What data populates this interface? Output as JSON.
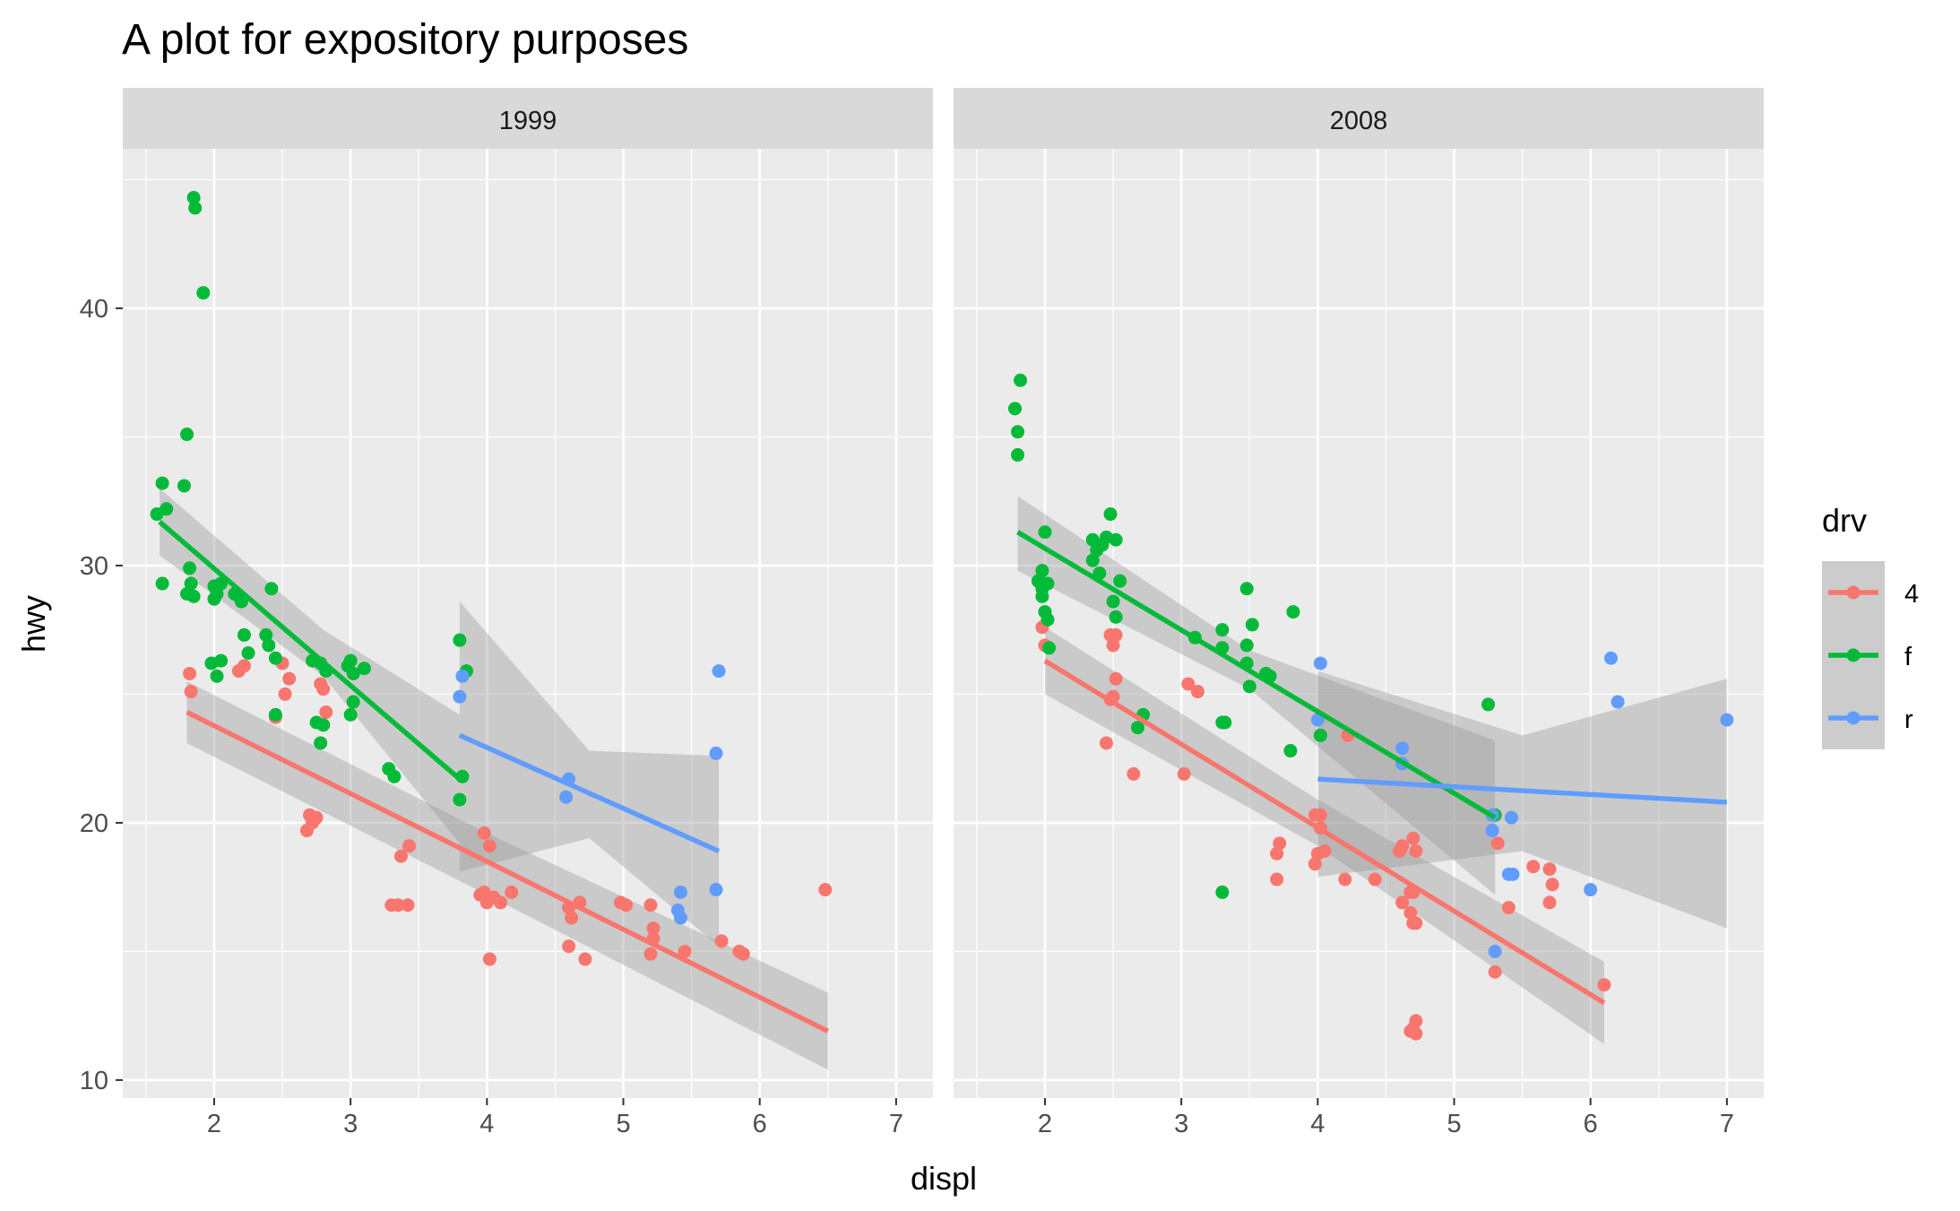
{
  "chart_data": {
    "type": "scatter",
    "title": "A plot for expository purposes",
    "xlabel": "displ",
    "ylabel": "hwy",
    "xlim": [
      1.33,
      7.27
    ],
    "ylim": [
      9.3,
      46.2
    ],
    "x_ticks": [
      2,
      3,
      4,
      5,
      6,
      7
    ],
    "y_ticks": [
      10,
      20,
      30,
      40
    ],
    "grid": true,
    "facet_variable": "year",
    "legend": {
      "title": "drv",
      "position": "right",
      "entries": [
        {
          "label": "4",
          "color": "#F8766D"
        },
        {
          "label": "f",
          "color": "#00BA38"
        },
        {
          "label": "r",
          "color": "#619CFF"
        }
      ]
    },
    "panels": [
      {
        "label": "1999",
        "points": {
          "4": [
            [
              1.82,
              25.8
            ],
            [
              1.83,
              25.1
            ],
            [
              2.18,
              25.9
            ],
            [
              2.22,
              26.1
            ],
            [
              2.5,
              26.2
            ],
            [
              2.52,
              25
            ],
            [
              2.55,
              25.6
            ],
            [
              2.45,
              24.1
            ],
            [
              2.7,
              20.3
            ],
            [
              2.68,
              19.7
            ],
            [
              2.72,
              20
            ],
            [
              2.75,
              20.2
            ],
            [
              2.78,
              25.4
            ],
            [
              2.82,
              24.3
            ],
            [
              2.8,
              25.2
            ],
            [
              3.3,
              16.8
            ],
            [
              3.35,
              16.8
            ],
            [
              3.42,
              16.8
            ],
            [
              3.37,
              18.7
            ],
            [
              3.43,
              19.1
            ],
            [
              3.98,
              19.6
            ],
            [
              4.02,
              19.1
            ],
            [
              3.95,
              17.2
            ],
            [
              4.0,
              16.9
            ],
            [
              4.05,
              17.1
            ],
            [
              4.1,
              16.9
            ],
            [
              3.98,
              17.3
            ],
            [
              4.18,
              17.3
            ],
            [
              4.02,
              14.7
            ],
            [
              4.6,
              16.7
            ],
            [
              4.6,
              15.2
            ],
            [
              4.62,
              16.3
            ],
            [
              4.68,
              16.9
            ],
            [
              4.72,
              14.7
            ],
            [
              4.98,
              16.9
            ],
            [
              5.02,
              16.8
            ],
            [
              5.2,
              16.8
            ],
            [
              5.22,
              15.9
            ],
            [
              5.2,
              14.9
            ],
            [
              5.22,
              15.5
            ],
            [
              5.45,
              15
            ],
            [
              5.72,
              15.4
            ],
            [
              5.85,
              15
            ],
            [
              5.88,
              14.9
            ],
            [
              6.48,
              17.4
            ]
          ],
          "f": [
            [
              1.58,
              32
            ],
            [
              1.62,
              33.2
            ],
            [
              1.65,
              32.2
            ],
            [
              1.78,
              33.1
            ],
            [
              1.8,
              35.1
            ],
            [
              1.85,
              44.3
            ],
            [
              1.86,
              43.9
            ],
            [
              1.92,
              40.6
            ],
            [
              1.62,
              29.3
            ],
            [
              1.8,
              28.9
            ],
            [
              1.83,
              29.3
            ],
            [
              1.85,
              28.8
            ],
            [
              1.82,
              29.9
            ],
            [
              2.0,
              29.2
            ],
            [
              2.02,
              28.9
            ],
            [
              2.05,
              29.3
            ],
            [
              2.0,
              28.7
            ],
            [
              2.18,
              28.8
            ],
            [
              2.2,
              28.6
            ],
            [
              2.15,
              28.9
            ],
            [
              1.98,
              26.2
            ],
            [
              2.05,
              26.3
            ],
            [
              2.02,
              25.7
            ],
            [
              2.22,
              27.3
            ],
            [
              2.25,
              26.6
            ],
            [
              2.38,
              27.3
            ],
            [
              2.4,
              26.9
            ],
            [
              2.42,
              29.1
            ],
            [
              2.45,
              26.4
            ],
            [
              2.45,
              24.2
            ],
            [
              2.72,
              26.3
            ],
            [
              2.78,
              26.2
            ],
            [
              2.82,
              25.9
            ],
            [
              2.75,
              23.9
            ],
            [
              2.8,
              23.8
            ],
            [
              2.78,
              23.1
            ],
            [
              2.98,
              26.1
            ],
            [
              3.0,
              26.3
            ],
            [
              3.02,
              25.8
            ],
            [
              3.1,
              26
            ],
            [
              3.02,
              24.7
            ],
            [
              3.0,
              24.2
            ],
            [
              3.28,
              22.1
            ],
            [
              3.32,
              21.8
            ],
            [
              3.8,
              27.1
            ],
            [
              3.85,
              25.9
            ],
            [
              3.82,
              21.8
            ],
            [
              3.8,
              20.9
            ]
          ],
          "r": [
            [
              3.8,
              24.9
            ],
            [
              3.82,
              25.7
            ],
            [
              4.6,
              21.7
            ],
            [
              4.58,
              21
            ],
            [
              5.42,
              17.3
            ],
            [
              5.4,
              16.6
            ],
            [
              5.42,
              16.3
            ],
            [
              5.68,
              22.7
            ],
            [
              5.7,
              25.9
            ],
            [
              5.68,
              17.4
            ]
          ]
        },
        "trend": {
          "4": {
            "x": [
              1.8,
              6.5
            ],
            "y": [
              24.3,
              11.9
            ],
            "band": [
              [
                1.8,
                23.1,
                25.5
              ],
              [
                4.0,
                17.2,
                19.6
              ],
              [
                6.5,
                10.4,
                13.4
              ]
            ]
          },
          "f": {
            "x": [
              1.6,
              3.8
            ],
            "y": [
              31.7,
              21.7
            ],
            "band": [
              [
                1.6,
                30.4,
                33.0
              ],
              [
                2.8,
                25.7,
                27.5
              ],
              [
                3.8,
                19.2,
                24.2
              ]
            ]
          },
          "r": {
            "x": [
              3.8,
              5.7
            ],
            "y": [
              23.4,
              18.9
            ],
            "band": [
              [
                3.8,
                18.1,
                28.6
              ],
              [
                4.75,
                19.4,
                22.8
              ],
              [
                5.7,
                15.2,
                22.6
              ]
            ]
          }
        }
      },
      {
        "label": "2008",
        "points": {
          "4": [
            [
              1.98,
              27.6
            ],
            [
              2.0,
              26.9
            ],
            [
              2.48,
              27.3
            ],
            [
              2.52,
              27.3
            ],
            [
              2.5,
              26.9
            ],
            [
              2.52,
              25.6
            ],
            [
              2.48,
              24.8
            ],
            [
              2.5,
              24.9
            ],
            [
              2.45,
              23.1
            ],
            [
              2.65,
              21.9
            ],
            [
              3.02,
              21.9
            ],
            [
              3.05,
              25.4
            ],
            [
              3.12,
              25.1
            ],
            [
              3.72,
              19.2
            ],
            [
              3.7,
              18.8
            ],
            [
              3.7,
              17.8
            ],
            [
              3.98,
              18.4
            ],
            [
              3.98,
              20.3
            ],
            [
              4.02,
              19.8
            ],
            [
              4.0,
              18.8
            ],
            [
              4.05,
              18.9
            ],
            [
              4.02,
              20.3
            ],
            [
              4.2,
              17.8
            ],
            [
              4.22,
              23.4
            ],
            [
              4.42,
              17.8
            ],
            [
              4.62,
              19.1
            ],
            [
              4.6,
              18.9
            ],
            [
              4.62,
              16.9
            ],
            [
              4.68,
              11.9
            ],
            [
              4.7,
              12
            ],
            [
              4.72,
              12.3
            ],
            [
              4.72,
              11.8
            ],
            [
              4.68,
              16.5
            ],
            [
              4.7,
              16.1
            ],
            [
              4.68,
              17.3
            ],
            [
              4.7,
              19.4
            ],
            [
              4.72,
              18.9
            ],
            [
              4.7,
              17.3
            ],
            [
              4.72,
              16.1
            ],
            [
              5.32,
              19.2
            ],
            [
              5.3,
              14.2
            ],
            [
              5.4,
              16.7
            ],
            [
              5.58,
              18.3
            ],
            [
              5.7,
              18.2
            ],
            [
              5.72,
              17.6
            ],
            [
              5.7,
              16.9
            ],
            [
              6.1,
              13.7
            ]
          ],
          "f": [
            [
              1.78,
              36.1
            ],
            [
              1.8,
              35.2
            ],
            [
              1.82,
              37.2
            ],
            [
              1.8,
              34.3
            ],
            [
              1.98,
              29.8
            ],
            [
              1.95,
              29.4
            ],
            [
              1.98,
              29.1
            ],
            [
              1.98,
              28.8
            ],
            [
              1.96,
              29.4
            ],
            [
              2.0,
              28.2
            ],
            [
              2.02,
              27.9
            ],
            [
              2.03,
              26.8
            ],
            [
              2.0,
              31.3
            ],
            [
              2.02,
              29.3
            ],
            [
              2.35,
              31
            ],
            [
              2.38,
              30.6
            ],
            [
              2.42,
              30.8
            ],
            [
              2.48,
              32
            ],
            [
              2.45,
              31.1
            ],
            [
              2.52,
              31
            ],
            [
              2.35,
              30.2
            ],
            [
              2.4,
              29.7
            ],
            [
              2.55,
              29.4
            ],
            [
              2.5,
              28.6
            ],
            [
              2.52,
              28
            ],
            [
              2.68,
              23.7
            ],
            [
              2.72,
              24.2
            ],
            [
              3.1,
              27.2
            ],
            [
              3.3,
              27.5
            ],
            [
              3.3,
              26.8
            ],
            [
              3.48,
              26.9
            ],
            [
              3.5,
              25.3
            ],
            [
              3.48,
              26.2
            ],
            [
              3.52,
              27.7
            ],
            [
              3.48,
              29.1
            ],
            [
              3.62,
              25.8
            ],
            [
              3.65,
              25.7
            ],
            [
              3.3,
              23.9
            ],
            [
              3.32,
              23.9
            ],
            [
              3.3,
              17.3
            ],
            [
              3.82,
              28.2
            ],
            [
              3.8,
              22.8
            ],
            [
              4.02,
              23.4
            ],
            [
              5.25,
              24.6
            ],
            [
              5.3,
              20.3
            ]
          ],
          "r": [
            [
              4.0,
              24
            ],
            [
              4.02,
              26.2
            ],
            [
              4.62,
              22.3
            ],
            [
              4.62,
              22.9
            ],
            [
              5.28,
              20.3
            ],
            [
              5.28,
              19.7
            ],
            [
              5.42,
              20.2
            ],
            [
              5.4,
              18
            ],
            [
              5.43,
              18
            ],
            [
              5.3,
              15
            ],
            [
              6.0,
              17.4
            ],
            [
              6.15,
              26.4
            ],
            [
              6.2,
              24.7
            ],
            [
              7.0,
              24
            ]
          ]
        },
        "trend": {
          "4": {
            "x": [
              2.0,
              6.1
            ],
            "y": [
              26.3,
              13
            ],
            "band": [
              [
                2.0,
                25.0,
                27.6
              ],
              [
                4.0,
                19.1,
                20.9
              ],
              [
                6.1,
                11.4,
                14.6
              ]
            ]
          },
          "f": {
            "x": [
              1.8,
              5.3
            ],
            "y": [
              31.3,
              20.2
            ],
            "band": [
              [
                1.8,
                29.8,
                32.7
              ],
              [
                3.5,
                25.2,
                26.7
              ],
              [
                5.3,
                17.2,
                23.2
              ]
            ]
          },
          "r": {
            "x": [
              4.0,
              7.0
            ],
            "y": [
              21.7,
              20.8
            ],
            "band": [
              [
                4.0,
                17.9,
                25.9
              ],
              [
                5.5,
                18.9,
                23.4
              ],
              [
                7.0,
                15.9,
                25.6
              ]
            ]
          }
        }
      }
    ]
  }
}
